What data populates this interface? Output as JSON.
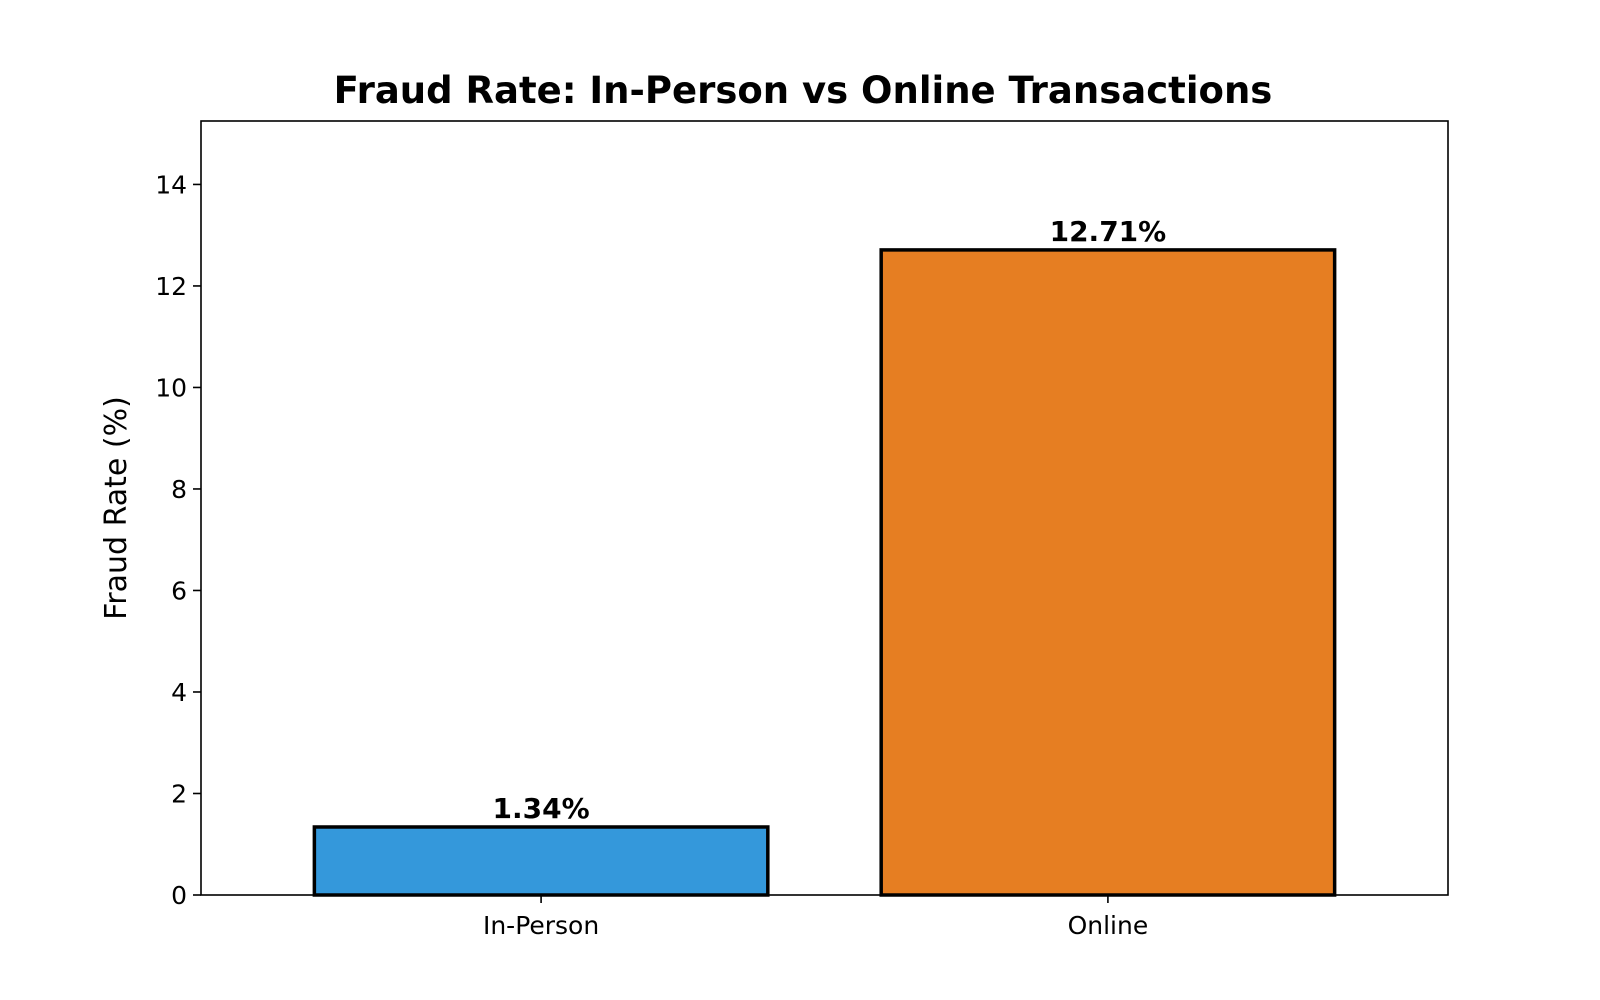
{
  "chart_data": {
    "type": "bar",
    "title": "Fraud Rate: In-Person vs Online Transactions",
    "xlabel": "",
    "ylabel": "Fraud Rate (%)",
    "categories": [
      "In-Person",
      "Online"
    ],
    "values": [
      1.34,
      12.71
    ],
    "data_labels": [
      "1.34%",
      "12.71%"
    ],
    "colors": [
      "#3498db",
      "#e67e22"
    ],
    "edge_color": "#000000",
    "ylim": [
      0,
      15.25
    ],
    "yticks": [
      0,
      2,
      4,
      6,
      8,
      10,
      12,
      14
    ],
    "ytick_labels": [
      "0",
      "2",
      "4",
      "6",
      "8",
      "10",
      "12",
      "14"
    ],
    "grid": false,
    "legend": "none"
  }
}
